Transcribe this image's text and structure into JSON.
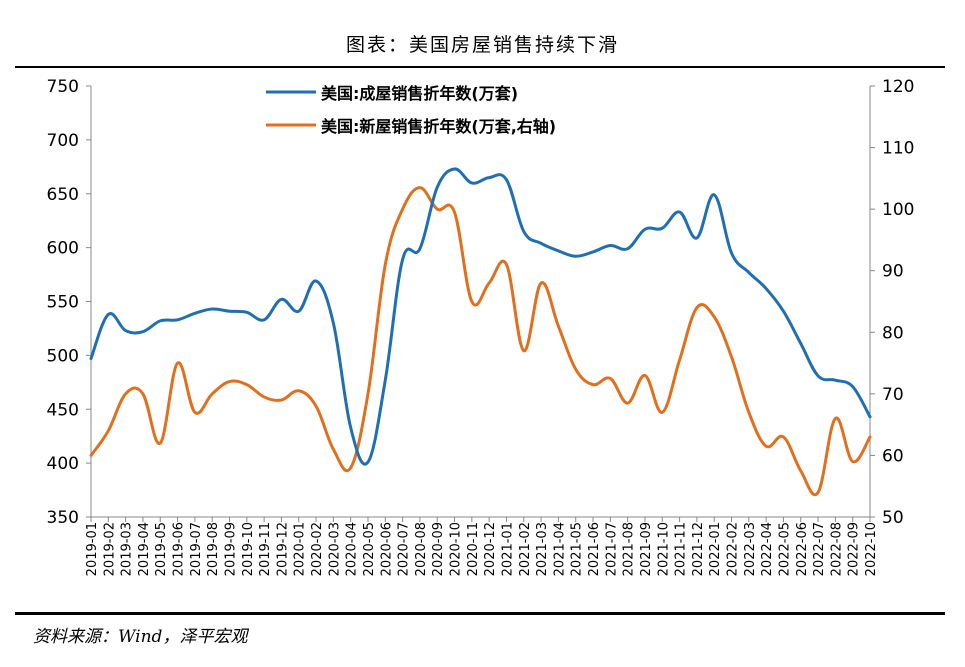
{
  "title": "图表：美国房屋销售持续下滑",
  "source": "资料来源：Wind，泽平宏观",
  "chart_data": {
    "type": "line",
    "x": [
      "2019-01",
      "2019-02",
      "2019-03",
      "2019-04",
      "2019-05",
      "2019-06",
      "2019-07",
      "2019-08",
      "2019-09",
      "2019-10",
      "2019-11",
      "2019-12",
      "2020-01",
      "2020-02",
      "2020-03",
      "2020-04",
      "2020-05",
      "2020-06",
      "2020-07",
      "2020-08",
      "2020-09",
      "2020-10",
      "2020-11",
      "2020-12",
      "2021-01",
      "2021-02",
      "2021-03",
      "2021-04",
      "2021-05",
      "2021-06",
      "2021-07",
      "2021-08",
      "2021-09",
      "2021-10",
      "2021-11",
      "2021-12",
      "2022-01",
      "2022-02",
      "2022-03",
      "2022-04",
      "2022-05",
      "2022-06",
      "2022-07",
      "2022-08",
      "2022-09",
      "2022-10"
    ],
    "y_left": {
      "min": 350,
      "max": 750,
      "ticks": [
        350,
        400,
        450,
        500,
        550,
        600,
        650,
        700,
        750
      ]
    },
    "y_right": {
      "min": 50,
      "max": 120,
      "ticks": [
        50,
        60,
        70,
        80,
        90,
        100,
        110,
        120
      ]
    },
    "legend_position": "top-center",
    "grid": false,
    "series": [
      {
        "name": "美国:成屋销售折年数(万套)",
        "axis": "left",
        "color": "#1f6fb2",
        "values": [
          497,
          538,
          523,
          522,
          532,
          533,
          539,
          543,
          541,
          540,
          533,
          552,
          541,
          569,
          530,
          433,
          401,
          477,
          589,
          599,
          656,
          673,
          660,
          665,
          663,
          615,
          604,
          597,
          592,
          596,
          602,
          599,
          617,
          618,
          633,
          609,
          649,
          595,
          577,
          562,
          541,
          511,
          481,
          477,
          471,
          443
        ]
      },
      {
        "name": "美国:新屋销售折年数(万套,右轴)",
        "axis": "right",
        "color": "#e0701e",
        "values": [
          60,
          64,
          70,
          70,
          62,
          75,
          67,
          70,
          72,
          71.5,
          69.5,
          69,
          70.5,
          68,
          61,
          58,
          70,
          91,
          100,
          103.5,
          100,
          99.5,
          85,
          88,
          91,
          77,
          88,
          81,
          74,
          71.5,
          72.5,
          68.5,
          73,
          67,
          75.5,
          84,
          82.5,
          76,
          67,
          61.5,
          63,
          57.5,
          54,
          66,
          59,
          63
        ]
      }
    ]
  }
}
